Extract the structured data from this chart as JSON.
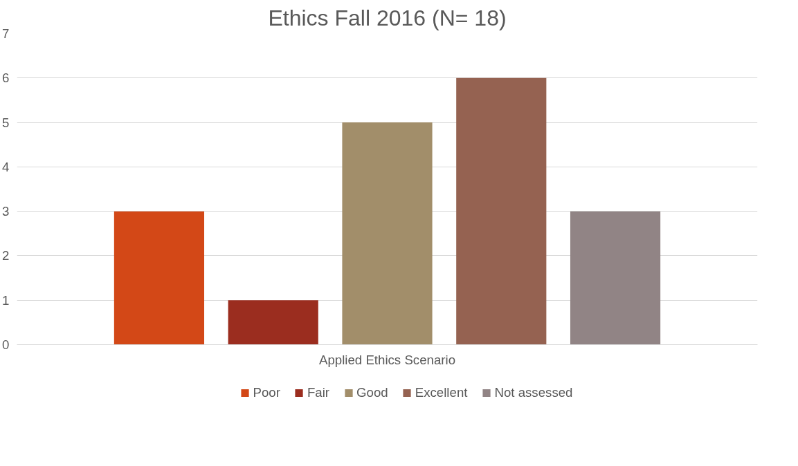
{
  "chart_data": {
    "type": "bar",
    "title": "Ethics Fall 2016 (N= 18)",
    "categories": [
      "Applied Ethics Scenario"
    ],
    "series": [
      {
        "name": "Poor",
        "color": "#d34817",
        "values": [
          3
        ]
      },
      {
        "name": "Fair",
        "color": "#9b2d1f",
        "values": [
          1
        ]
      },
      {
        "name": "Good",
        "color": "#a28e6a",
        "values": [
          5
        ]
      },
      {
        "name": "Excellent",
        "color": "#956251",
        "values": [
          6
        ]
      },
      {
        "name": "Not assessed",
        "color": "#918485",
        "values": [
          3
        ]
      }
    ],
    "ylim": [
      0,
      7
    ],
    "yticks": [
      0,
      1,
      2,
      3,
      4,
      5,
      6,
      7
    ],
    "grid": "y",
    "legend": "bottom"
  }
}
